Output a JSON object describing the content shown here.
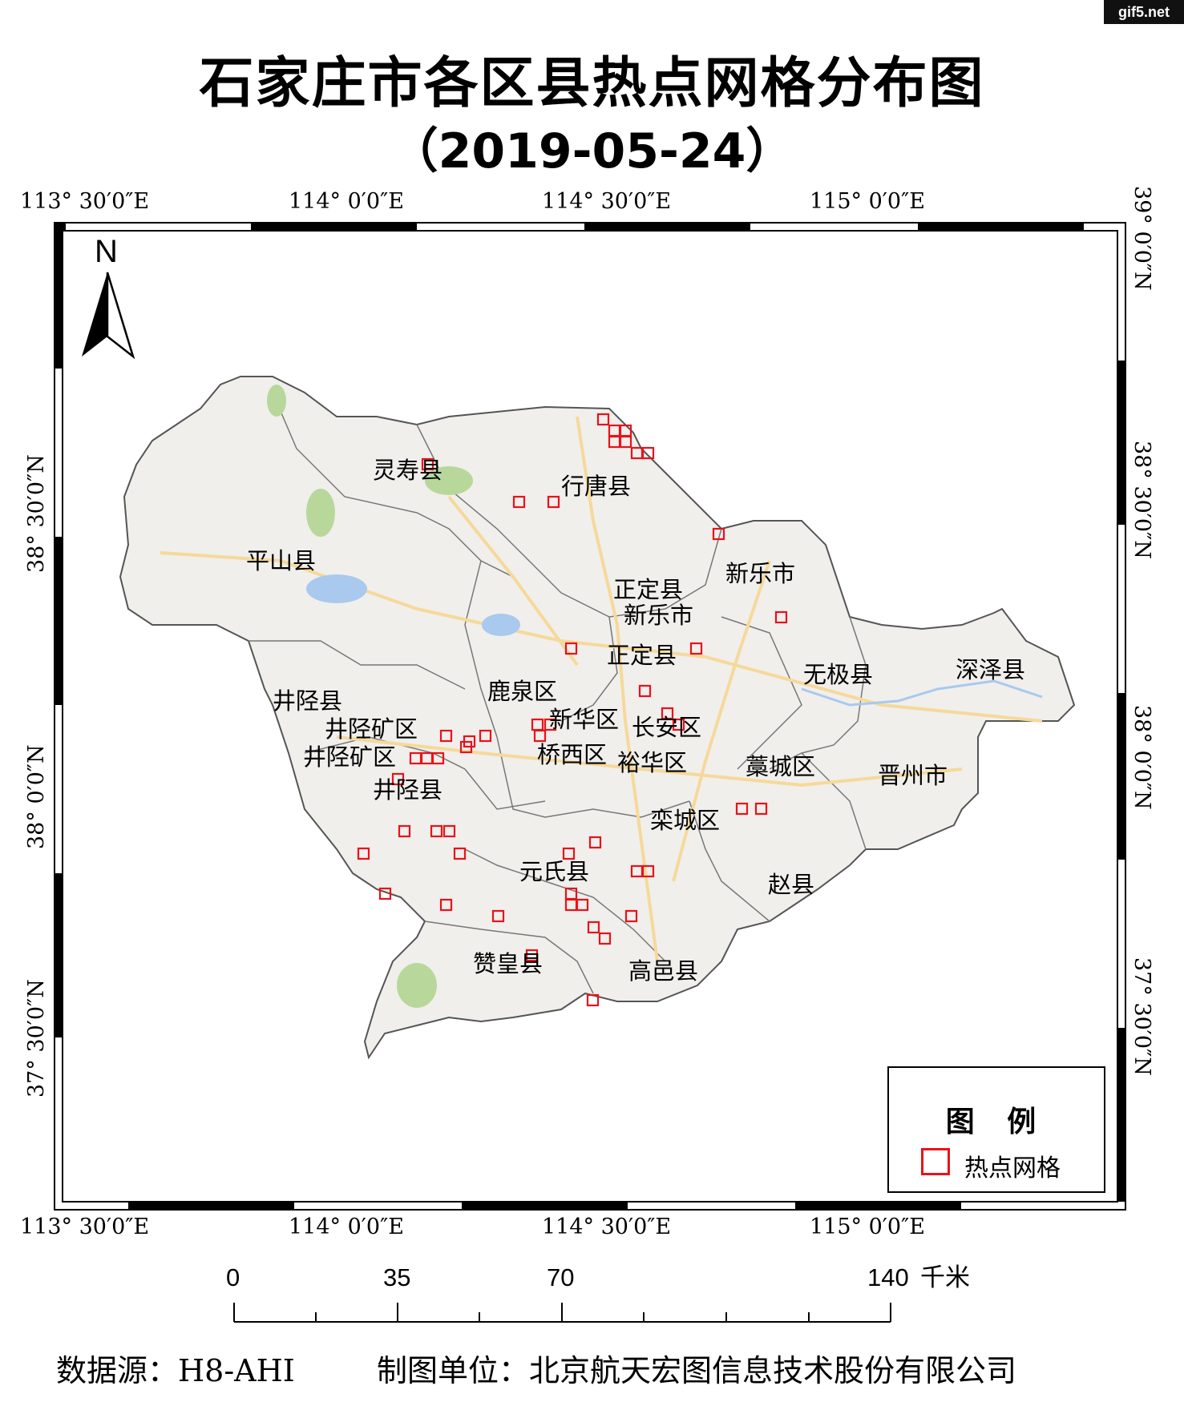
{
  "title": "石家庄市各区县热点网格分布图",
  "date": "（2019-05-24）",
  "watermark": "gif5.net",
  "longitude_labels": [
    "113° 30′0″E",
    "114° 0′0″E",
    "114° 30′0″E",
    "115° 0′0″E"
  ],
  "latitude_labels": [
    "39° 0′0″N",
    "38° 30′0″N",
    "38° 0′0″N",
    "37° 30′0″N"
  ],
  "north_arrow": {
    "letter": "N",
    "icon": "north-arrow-icon"
  },
  "legend": {
    "title": "图 例",
    "item": "热点网格",
    "color": "#e8121b"
  },
  "scale_bar": {
    "ticks": [
      "0",
      "35",
      "70",
      "140"
    ],
    "unit": "千米"
  },
  "labels": [
    "灵寿县",
    "行唐县",
    "平山县",
    "新乐市",
    "正定县",
    "新乐市",
    "正定县",
    "无极县",
    "深泽县",
    "井陉县",
    "鹿泉区",
    "井陉矿区",
    "新华区",
    "长安区",
    "井陉矿区",
    "桥西区",
    "裕华区",
    "藁城区",
    "晋州市",
    "井陉县",
    "栾城区",
    "元氏县",
    "赵县",
    "赞皇县",
    "高邑县"
  ],
  "footer": {
    "source": "数据源：H8-AHI",
    "unit": "制图单位：北京航天宏图信息技术股份有限公司"
  },
  "colors": {
    "hotspot": "#e8121b",
    "map_base": "#f0efec",
    "road": "#f6d99a",
    "water": "#a9c9ee",
    "park": "#b7d89a"
  }
}
